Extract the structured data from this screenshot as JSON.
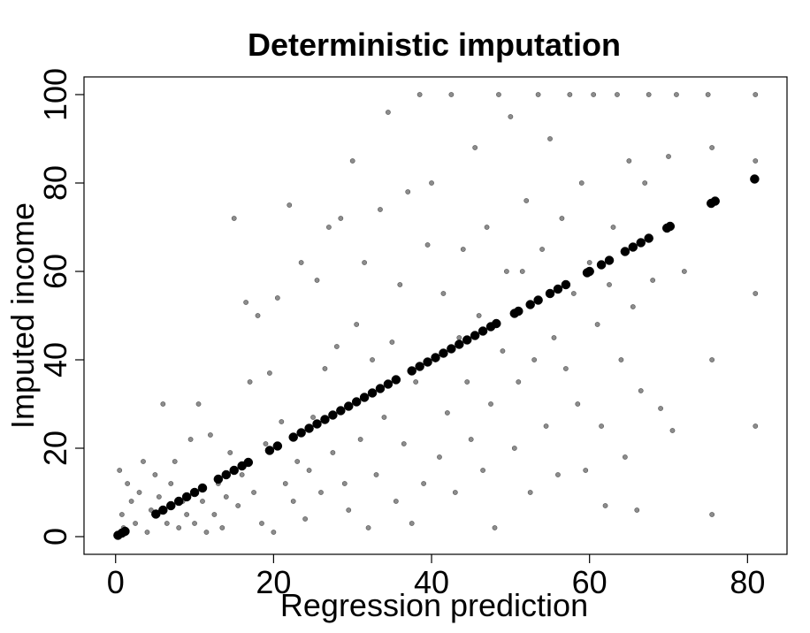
{
  "chart_data": {
    "type": "scatter",
    "title": "Deterministic imputation",
    "xlabel": "Regression prediction",
    "ylabel": "Imputed income",
    "xlim": [
      -4,
      85
    ],
    "ylim": [
      -4,
      104
    ],
    "x_ticks": [
      0,
      20,
      40,
      60,
      80
    ],
    "y_ticks": [
      0,
      20,
      40,
      60,
      80,
      100
    ],
    "grid": false,
    "legend": "none",
    "colors": {
      "observed": "#8c8c8c",
      "imputed": "#000000"
    },
    "series": [
      {
        "role": "observed",
        "points": [
          [
            0.5,
            15
          ],
          [
            0.8,
            5
          ],
          [
            1,
            2
          ],
          [
            1.5,
            12
          ],
          [
            2,
            8
          ],
          [
            2.5,
            3
          ],
          [
            3,
            10
          ],
          [
            3.5,
            17
          ],
          [
            4,
            1
          ],
          [
            4.5,
            6
          ],
          [
            5,
            14
          ],
          [
            5.5,
            9
          ],
          [
            6,
            30
          ],
          [
            6.5,
            3
          ],
          [
            7,
            12
          ],
          [
            7.5,
            17
          ],
          [
            8,
            2
          ],
          [
            8.5,
            8
          ],
          [
            9,
            5
          ],
          [
            9.5,
            22
          ],
          [
            10,
            3
          ],
          [
            10.5,
            30
          ],
          [
            11,
            8
          ],
          [
            11.5,
            1
          ],
          [
            12,
            23
          ],
          [
            12.5,
            5
          ],
          [
            13,
            12
          ],
          [
            13.5,
            2
          ],
          [
            14,
            9
          ],
          [
            14.5,
            19
          ],
          [
            15,
            72
          ],
          [
            15.5,
            7
          ],
          [
            16,
            14
          ],
          [
            16.5,
            53
          ],
          [
            17,
            35
          ],
          [
            17.5,
            10
          ],
          [
            18,
            50
          ],
          [
            18.5,
            3
          ],
          [
            19,
            21
          ],
          [
            19.5,
            37
          ],
          [
            20,
            1
          ],
          [
            20.5,
            54
          ],
          [
            21,
            26
          ],
          [
            21.5,
            12
          ],
          [
            22,
            75
          ],
          [
            22.5,
            8
          ],
          [
            23,
            17
          ],
          [
            23.5,
            62
          ],
          [
            24,
            4
          ],
          [
            24.5,
            15
          ],
          [
            25,
            27
          ],
          [
            25.5,
            58
          ],
          [
            26,
            10
          ],
          [
            26.5,
            38
          ],
          [
            27,
            70
          ],
          [
            27.5,
            19
          ],
          [
            28,
            43
          ],
          [
            28.5,
            72
          ],
          [
            29,
            12
          ],
          [
            29.5,
            6
          ],
          [
            30,
            85
          ],
          [
            30.5,
            48
          ],
          [
            31,
            22
          ],
          [
            31.5,
            62
          ],
          [
            32,
            2
          ],
          [
            32.5,
            40
          ],
          [
            33,
            14
          ],
          [
            33.5,
            74
          ],
          [
            34,
            27
          ],
          [
            34.5,
            96
          ],
          [
            35,
            44
          ],
          [
            35.5,
            8
          ],
          [
            36,
            57
          ],
          [
            36.5,
            21
          ],
          [
            37,
            78
          ],
          [
            37.5,
            3
          ],
          [
            38,
            35
          ],
          [
            38.5,
            100
          ],
          [
            39,
            12
          ],
          [
            39.5,
            66
          ],
          [
            40,
            80
          ],
          [
            40.5,
            40
          ],
          [
            41,
            18
          ],
          [
            41.5,
            55
          ],
          [
            42,
            28
          ],
          [
            42.5,
            100
          ],
          [
            43,
            10
          ],
          [
            43.5,
            45
          ],
          [
            44,
            65
          ],
          [
            44.5,
            35
          ],
          [
            45,
            22
          ],
          [
            45.5,
            88
          ],
          [
            46,
            50
          ],
          [
            46.5,
            15
          ],
          [
            47,
            70
          ],
          [
            47.5,
            30
          ],
          [
            48,
            2
          ],
          [
            48.5,
            100
          ],
          [
            49,
            42
          ],
          [
            49.5,
            60
          ],
          [
            50,
            95
          ],
          [
            50.5,
            20
          ],
          [
            51,
            35
          ],
          [
            51.5,
            60
          ],
          [
            52,
            76
          ],
          [
            52.5,
            10
          ],
          [
            53,
            40
          ],
          [
            53.5,
            100
          ],
          [
            54,
            65
          ],
          [
            54.5,
            25
          ],
          [
            55,
            90
          ],
          [
            55.5,
            45
          ],
          [
            56,
            14
          ],
          [
            56.5,
            72
          ],
          [
            57,
            38
          ],
          [
            57.5,
            100
          ],
          [
            58,
            55
          ],
          [
            58.5,
            30
          ],
          [
            59,
            80
          ],
          [
            59.5,
            15
          ],
          [
            60,
            62
          ],
          [
            60.5,
            100
          ],
          [
            61,
            48
          ],
          [
            61.5,
            25
          ],
          [
            62,
            7
          ],
          [
            62.5,
            57
          ],
          [
            63,
            70
          ],
          [
            63.5,
            100
          ],
          [
            64,
            40
          ],
          [
            64.5,
            18
          ],
          [
            65,
            85
          ],
          [
            65.5,
            52
          ],
          [
            66,
            6
          ],
          [
            66.5,
            33
          ],
          [
            67,
            80
          ],
          [
            67.5,
            100
          ],
          [
            68,
            58
          ],
          [
            69,
            29
          ],
          [
            70,
            86
          ],
          [
            70.5,
            24
          ],
          [
            71,
            100
          ],
          [
            72,
            60
          ],
          [
            75,
            100
          ],
          [
            75.5,
            5
          ],
          [
            75.5,
            40
          ],
          [
            75.5,
            88
          ],
          [
            81,
            100
          ],
          [
            81,
            85
          ],
          [
            81,
            55
          ],
          [
            81,
            25
          ]
        ]
      },
      {
        "role": "imputed",
        "points": [
          [
            0.3,
            0.3
          ],
          [
            0.8,
            0.8
          ],
          [
            1.2,
            1.2
          ],
          [
            5.1,
            5.1
          ],
          [
            6,
            6
          ],
          [
            7,
            7
          ],
          [
            8,
            8
          ],
          [
            9,
            9
          ],
          [
            10,
            10
          ],
          [
            11,
            11
          ],
          [
            13,
            13
          ],
          [
            14,
            14
          ],
          [
            15,
            15
          ],
          [
            16,
            16
          ],
          [
            16.8,
            16.8
          ],
          [
            19.5,
            19.5
          ],
          [
            20.5,
            20.5
          ],
          [
            22.5,
            22.5
          ],
          [
            23.5,
            23.5
          ],
          [
            24.5,
            24.5
          ],
          [
            25.5,
            25.5
          ],
          [
            26.5,
            26.5
          ],
          [
            27.5,
            27.5
          ],
          [
            28.5,
            28.5
          ],
          [
            29.5,
            29.5
          ],
          [
            30.5,
            30.5
          ],
          [
            31.5,
            31.5
          ],
          [
            32.5,
            32.5
          ],
          [
            33.5,
            33.5
          ],
          [
            34.5,
            34.5
          ],
          [
            35.5,
            35.5
          ],
          [
            37.5,
            37.5
          ],
          [
            38.5,
            38.5
          ],
          [
            39.5,
            39.5
          ],
          [
            40.5,
            40.5
          ],
          [
            41.5,
            41.5
          ],
          [
            42.5,
            42.5
          ],
          [
            43.5,
            43.5
          ],
          [
            44.5,
            44.5
          ],
          [
            45.5,
            45.5
          ],
          [
            46.5,
            46.5
          ],
          [
            47.5,
            47.5
          ],
          [
            48.2,
            48.2
          ],
          [
            50.5,
            50.5
          ],
          [
            51,
            51
          ],
          [
            52.5,
            52.5
          ],
          [
            53.5,
            53.5
          ],
          [
            55,
            55
          ],
          [
            56,
            56
          ],
          [
            57,
            57
          ],
          [
            59.7,
            59.7
          ],
          [
            60,
            60
          ],
          [
            61.5,
            61.5
          ],
          [
            62.5,
            62.5
          ],
          [
            64.5,
            64.5
          ],
          [
            65.5,
            65.5
          ],
          [
            66.5,
            66.5
          ],
          [
            67.5,
            67.5
          ],
          [
            69.8,
            69.8
          ],
          [
            70.2,
            70.2
          ],
          [
            75.4,
            75.4
          ],
          [
            75.9,
            75.9
          ],
          [
            80.9,
            80.9
          ]
        ]
      }
    ]
  }
}
